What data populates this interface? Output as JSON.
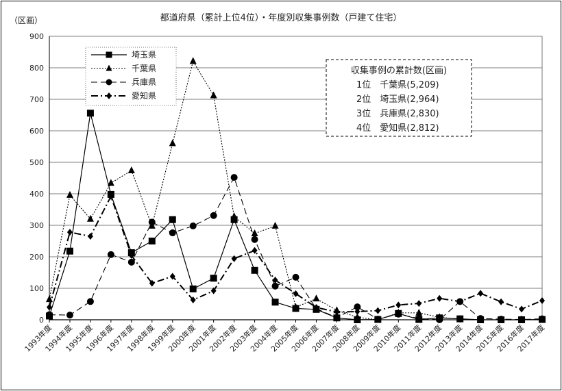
{
  "chart_data": {
    "type": "line",
    "title": "都道府県（累計上位4位）・年度別収集事例数（戸建て住宅）",
    "ylabel": "（区画）",
    "xlabel": "",
    "ylim": [
      0,
      900
    ],
    "yticks": [
      "0",
      "100",
      "200",
      "300",
      "400",
      "500",
      "600",
      "700",
      "800",
      "900"
    ],
    "grid": "horizontal",
    "legend_position": "top-left",
    "categories": [
      "1993年度",
      "1994年度",
      "1995年度",
      "1996年度",
      "1997年度",
      "1998年度",
      "1999年度",
      "2000年度",
      "2001年度",
      "2002年度",
      "2003年度",
      "2004年度",
      "2005年度",
      "2006年度",
      "2007年度",
      "2008年度",
      "2009年度",
      "2010年度",
      "2011年度",
      "2012年度",
      "2013年度",
      "2014年度",
      "2015年度",
      "2016年度",
      "2017年度"
    ],
    "series": [
      {
        "name": "埼玉県",
        "marker": "square",
        "line": "solid",
        "values": [
          12,
          218,
          656,
          398,
          213,
          250,
          318,
          98,
          132,
          318,
          157,
          56,
          36,
          33,
          6,
          0,
          1,
          20,
          1,
          6,
          3,
          0,
          0,
          0,
          1
        ]
      },
      {
        "name": "千葉県",
        "marker": "triangle",
        "line": "dotted",
        "values": [
          65,
          396,
          320,
          434,
          474,
          298,
          560,
          821,
          712,
          328,
          274,
          298,
          40,
          67,
          30,
          8,
          0,
          22,
          22,
          8,
          2,
          0,
          0,
          0,
          1
        ]
      },
      {
        "name": "兵庫県",
        "marker": "circle",
        "line": "dashed",
        "values": [
          16,
          15,
          58,
          207,
          183,
          310,
          276,
          298,
          331,
          452,
          255,
          107,
          135,
          35,
          7,
          41,
          2,
          18,
          4,
          0,
          58,
          4,
          2,
          1,
          3
        ]
      },
      {
        "name": "愛知県",
        "marker": "diamond",
        "line": "dashdot",
        "values": [
          40,
          278,
          265,
          392,
          204,
          116,
          138,
          63,
          92,
          194,
          220,
          126,
          83,
          39,
          25,
          26,
          29,
          47,
          52,
          68,
          58,
          84,
          57,
          34,
          61
        ]
      }
    ],
    "annotation": {
      "lines": [
        "収集事例の累計数(区画)",
        "1位　千葉県(5,209)",
        "2位　埼玉県(2,964)",
        "3位　兵庫県(2,830)",
        "4位　愛知県(2,812)"
      ]
    }
  }
}
